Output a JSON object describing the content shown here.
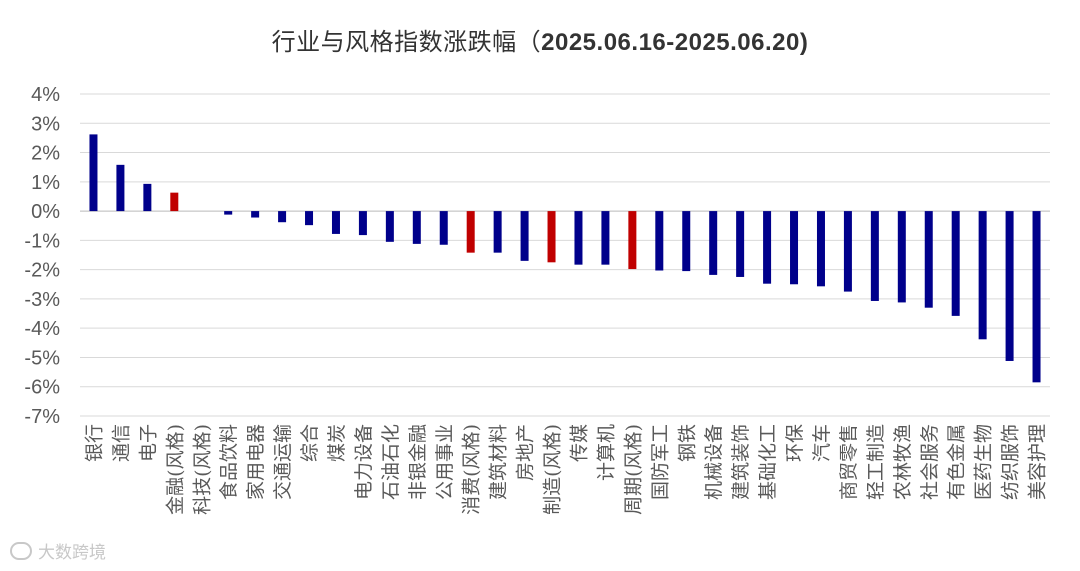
{
  "chart_data": {
    "type": "bar",
    "title": "行业与风格指数涨跌幅（",
    "title_date": "2025.06.16-2025.06.20)",
    "ylim": [
      -7,
      4
    ],
    "yticks": [
      "4%",
      "3%",
      "2%",
      "1%",
      "0%",
      "-1%",
      "-2%",
      "-3%",
      "-4%",
      "-5%",
      "-6%",
      "-7%"
    ],
    "grid": true,
    "legend": "none",
    "colors": {
      "industry": "#00008B",
      "style": "#C00000",
      "grid": "#D9D9D9"
    },
    "categories": [
      "银行",
      "通信",
      "电子",
      "金融(风格)",
      "科技(风格)",
      "食品饮料",
      "家用电器",
      "交通运输",
      "综合",
      "煤炭",
      "电力设备",
      "石油石化",
      "非银金融",
      "公用事业",
      "消费(风格)",
      "建筑材料",
      "房地产",
      "制造(风格)",
      "传媒",
      "计算机",
      "周期(风格)",
      "国防军工",
      "钢铁",
      "机械设备",
      "建筑装饰",
      "基础化工",
      "环保",
      "汽车",
      "商贸零售",
      "轻工制造",
      "农林牧渔",
      "社会服务",
      "有色金属",
      "医药生物",
      "纺织服饰",
      "美容护理"
    ],
    "values": [
      2.62,
      1.58,
      0.93,
      0.63,
      0.0,
      -0.12,
      -0.22,
      -0.38,
      -0.48,
      -0.78,
      -0.82,
      -1.05,
      -1.12,
      -1.15,
      -1.42,
      -1.42,
      -1.7,
      -1.75,
      -1.83,
      -1.83,
      -1.98,
      -2.03,
      -2.05,
      -2.18,
      -2.25,
      -2.48,
      -2.5,
      -2.57,
      -2.75,
      -3.07,
      -3.12,
      -3.3,
      -3.58,
      -4.38,
      -5.12,
      -5.85
    ],
    "style_flags": [
      false,
      false,
      false,
      true,
      true,
      false,
      false,
      false,
      false,
      false,
      false,
      false,
      false,
      false,
      true,
      false,
      false,
      true,
      false,
      false,
      true,
      false,
      false,
      false,
      false,
      false,
      false,
      false,
      false,
      false,
      false,
      false,
      false,
      false,
      false,
      false
    ]
  },
  "watermark": {
    "text": "大数跨境"
  }
}
